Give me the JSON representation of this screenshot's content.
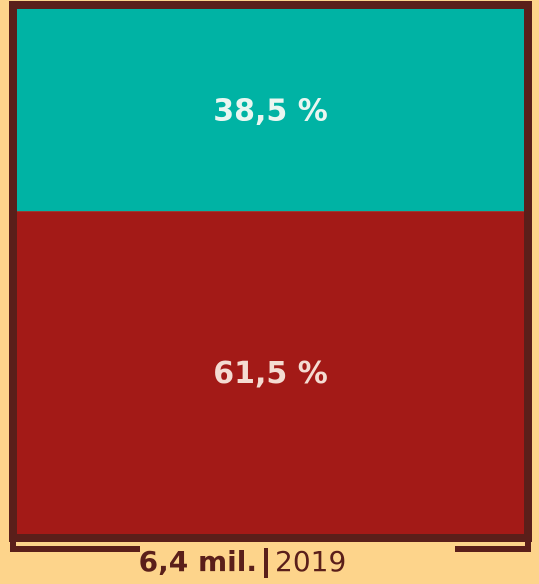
{
  "chart_data": {
    "type": "bar",
    "categories": [
      "2019"
    ],
    "total_label": "6,4 mil.",
    "series": [
      {
        "color": "#a31a17",
        "values": [
          61.5
        ],
        "value_labels": [
          "61,5 %"
        ],
        "label_color": "#f4dcd2"
      },
      {
        "color": "#00b3a4",
        "values": [
          38.5
        ],
        "value_labels": [
          "38,5 %"
        ],
        "label_color": "#eaf6f1"
      }
    ],
    "stacked": true,
    "ylim": [
      0,
      100
    ]
  }
}
